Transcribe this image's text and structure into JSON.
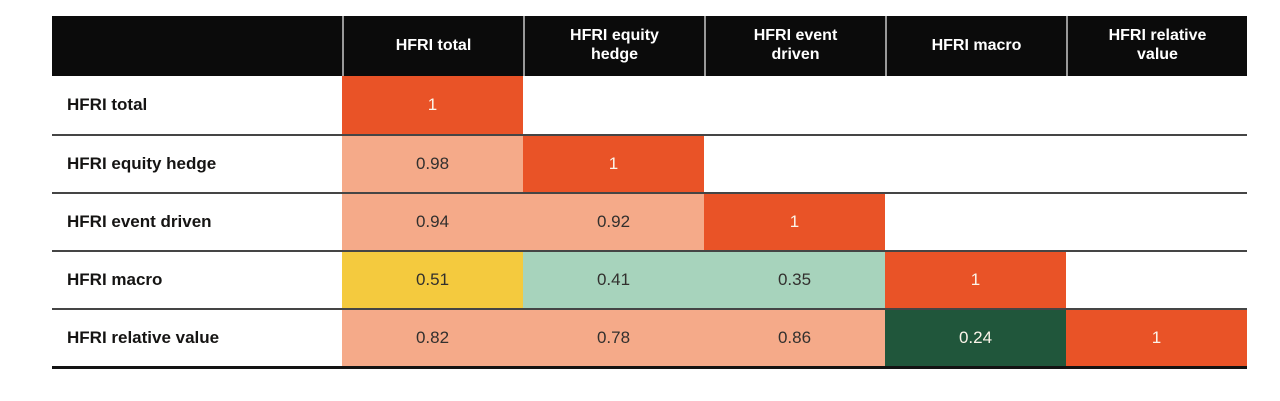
{
  "colors": {
    "header-bg": "#0b0b0b",
    "header-text": "#ffffff",
    "header-divider": "#999999",
    "orange": "#E95327",
    "salmon": "#F5AA89",
    "yellow": "#F4CA3E",
    "green-light": "#A7D3BC",
    "green-dark": "#20563B",
    "label-text": "#151413",
    "value-dark": "#32302e",
    "value-light": "#FBF4E9",
    "row-line": "#454545",
    "bottom-line": "#131313"
  },
  "table": {
    "corner": "",
    "columns": [
      "HFRI total",
      "HFRI equity hedge",
      "HFRI event driven",
      "HFRI macro",
      "HFRI relative value"
    ],
    "rows": [
      {
        "label": "HFRI total",
        "cells": [
          {
            "value": "1",
            "tone": "orange"
          },
          {
            "value": "",
            "tone": "empty"
          },
          {
            "value": "",
            "tone": "empty"
          },
          {
            "value": "",
            "tone": "empty"
          },
          {
            "value": "",
            "tone": "empty"
          }
        ]
      },
      {
        "label": "HFRI equity hedge",
        "cells": [
          {
            "value": "0.98",
            "tone": "salmon"
          },
          {
            "value": "1",
            "tone": "orange"
          },
          {
            "value": "",
            "tone": "empty"
          },
          {
            "value": "",
            "tone": "empty"
          },
          {
            "value": "",
            "tone": "empty"
          }
        ]
      },
      {
        "label": "HFRI event driven",
        "cells": [
          {
            "value": "0.94",
            "tone": "salmon"
          },
          {
            "value": "0.92",
            "tone": "salmon"
          },
          {
            "value": "1",
            "tone": "orange"
          },
          {
            "value": "",
            "tone": "empty"
          },
          {
            "value": "",
            "tone": "empty"
          }
        ]
      },
      {
        "label": "HFRI macro",
        "cells": [
          {
            "value": "0.51",
            "tone": "yellow"
          },
          {
            "value": "0.41",
            "tone": "green-light"
          },
          {
            "value": "0.35",
            "tone": "green-light"
          },
          {
            "value": "1",
            "tone": "orange"
          },
          {
            "value": "",
            "tone": "empty"
          }
        ]
      },
      {
        "label": "HFRI relative value",
        "cells": [
          {
            "value": "0.82",
            "tone": "salmon"
          },
          {
            "value": "0.78",
            "tone": "salmon"
          },
          {
            "value": "0.86",
            "tone": "salmon"
          },
          {
            "value": "0.24",
            "tone": "green-dark"
          },
          {
            "value": "1",
            "tone": "orange"
          }
        ]
      }
    ]
  },
  "chart_data": {
    "type": "heatmap",
    "title": "",
    "categories": [
      "HFRI total",
      "HFRI equity hedge",
      "HFRI event driven",
      "HFRI macro",
      "HFRI relative value"
    ],
    "series": [
      {
        "name": "HFRI total",
        "values": [
          1,
          null,
          null,
          null,
          null
        ]
      },
      {
        "name": "HFRI equity hedge",
        "values": [
          0.98,
          1,
          null,
          null,
          null
        ]
      },
      {
        "name": "HFRI event driven",
        "values": [
          0.94,
          0.92,
          1,
          null,
          null
        ]
      },
      {
        "name": "HFRI macro",
        "values": [
          0.51,
          0.41,
          0.35,
          1,
          null
        ]
      },
      {
        "name": "HFRI relative value",
        "values": [
          0.82,
          0.78,
          0.86,
          0.24,
          1
        ]
      }
    ],
    "value_range": [
      0,
      1
    ],
    "layout": "lower-triangular",
    "legend_position": "none",
    "grid": false,
    "color_scale": {
      "1.00": "#E95327",
      "0.78-0.98": "#F5AA89",
      "0.51": "#F4CA3E",
      "0.35-0.41": "#A7D3BC",
      "0.24": "#20563B"
    }
  }
}
